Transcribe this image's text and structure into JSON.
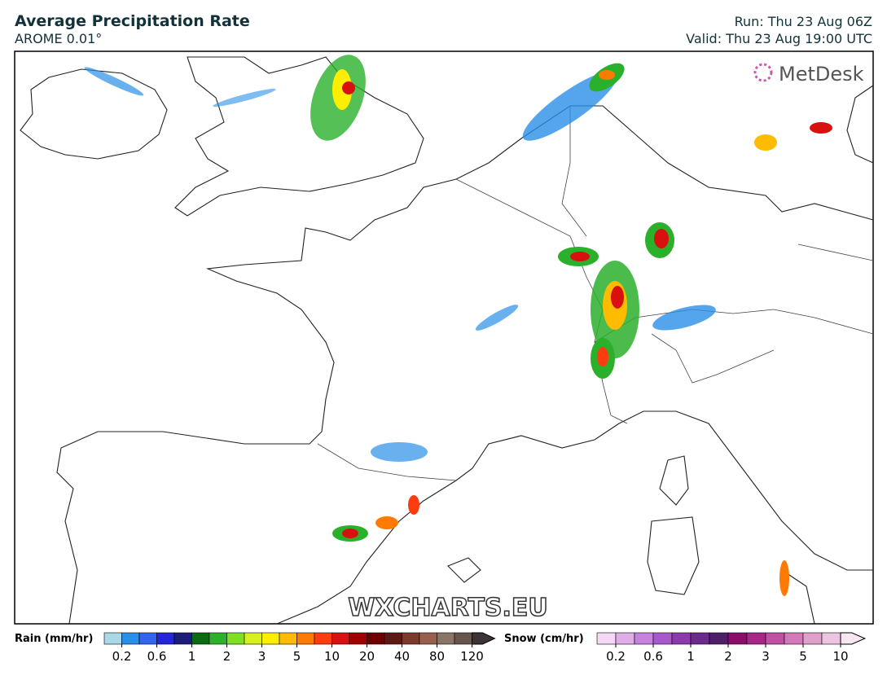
{
  "header": {
    "title": "Average Precipitation Rate",
    "subtitle": "AROME 0.01°",
    "run": "Run: Thu 23 Aug 06Z",
    "valid": "Valid: Thu 23 Aug 19:00 UTC"
  },
  "branding": {
    "logo": "MetDesk",
    "watermark": "WXCHARTS.EU"
  },
  "legend": {
    "rain": {
      "title": "Rain (mm/hr)",
      "colors": [
        "#a9d8e6",
        "#2a8fe8",
        "#3264f0",
        "#2424d8",
        "#1c1c7a",
        "#0b6a12",
        "#2bb02b",
        "#7ee020",
        "#d8f020",
        "#ffee00",
        "#ffbb00",
        "#ff7a00",
        "#ff3c10",
        "#d81010",
        "#a00000",
        "#6e0000",
        "#5c1a14",
        "#7a3a2c",
        "#9a5e4c",
        "#8a7466",
        "#66564e",
        "#3c3434"
      ],
      "ticks": [
        "0.2",
        "0.6",
        "1",
        "2",
        "3",
        "5",
        "10",
        "20",
        "40",
        "80",
        "120"
      ]
    },
    "snow": {
      "title": "Snow (cm/hr)",
      "colors": [
        "#f4d8f4",
        "#e0aee6",
        "#c682dc",
        "#a858cc",
        "#8a3aaa",
        "#6c2a8a",
        "#4e1e66",
        "#8c0c6c",
        "#a8288a",
        "#c050a2",
        "#d27ab8",
        "#e0a0cc",
        "#ecc6e0",
        "#f8e6f2"
      ],
      "ticks": [
        "0.2",
        "0.6",
        "1",
        "2",
        "3",
        "5",
        "10"
      ]
    }
  }
}
